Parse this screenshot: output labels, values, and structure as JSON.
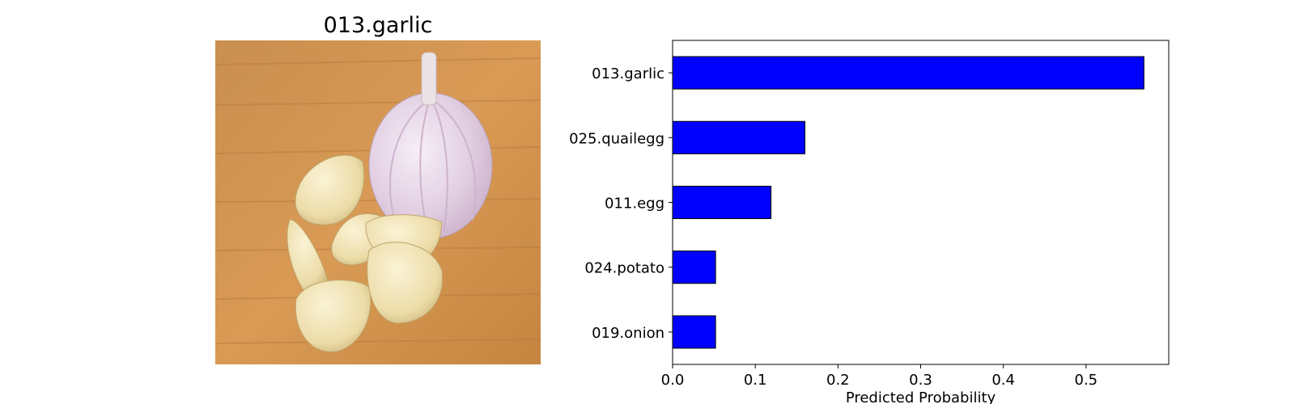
{
  "image_panel": {
    "title": "013.garlic",
    "photo_subject": "garlic bulb and peeled garlic cloves on a wooden cutting board"
  },
  "chart_data": {
    "type": "bar",
    "orientation": "horizontal",
    "categories": [
      "013.garlic",
      "025.quailegg",
      "011.egg",
      "024.potato",
      "019.onion"
    ],
    "values": [
      0.57,
      0.16,
      0.119,
      0.052,
      0.052
    ],
    "xlabel": "Predicted Probability",
    "ylabel": "",
    "xlim": [
      0,
      0.6
    ],
    "xticks": [
      "0.0",
      "0.1",
      "0.2",
      "0.3",
      "0.4",
      "0.5"
    ],
    "bar_color": "#0000ff",
    "edge_color": "#000000",
    "grid": false
  }
}
